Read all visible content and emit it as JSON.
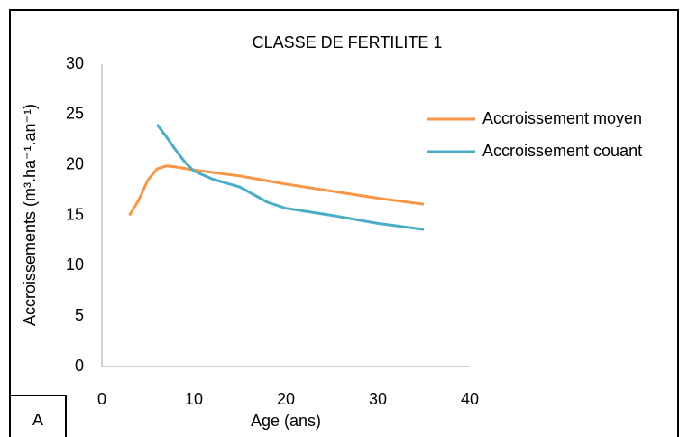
{
  "chart_data": {
    "type": "line",
    "title": "CLASSE DE FERTILITE 1",
    "xlabel": "Age (ans)",
    "ylabel": "Accroissements (m³.ha⁻¹.an⁻¹)",
    "panel_label": "A",
    "xlim": [
      0,
      40
    ],
    "xticks": [
      0,
      10,
      20,
      30,
      40
    ],
    "ylim": [
      0,
      30
    ],
    "yticks": [
      0,
      5,
      10,
      15,
      20,
      25,
      30
    ],
    "grid": false,
    "legend": "right",
    "series": [
      {
        "name": "Accroissement moyen",
        "color": "#f79646",
        "x": [
          3,
          4,
          5,
          6,
          7,
          8,
          10,
          15,
          20,
          25,
          30,
          35
        ],
        "values": [
          15,
          16.5,
          18.5,
          19.6,
          19.9,
          19.8,
          19.5,
          18.9,
          18.1,
          17.4,
          16.7,
          16.1
        ]
      },
      {
        "name": "Accroissement couant",
        "color": "#4bacc6",
        "x": [
          6,
          7,
          8,
          9,
          10,
          12,
          15,
          18,
          20,
          25,
          30,
          35
        ],
        "values": [
          24,
          22.8,
          21.5,
          20.3,
          19.4,
          18.6,
          17.8,
          16.3,
          15.7,
          15,
          14.2,
          13.6
        ]
      }
    ]
  }
}
